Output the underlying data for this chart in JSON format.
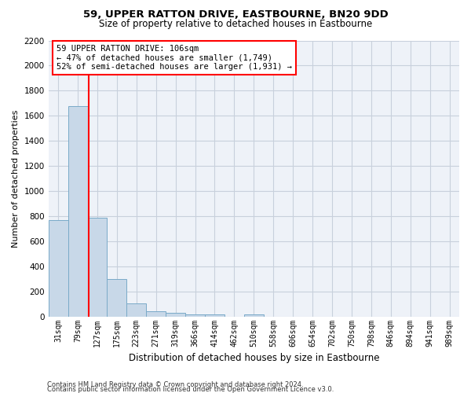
{
  "title": "59, UPPER RATTON DRIVE, EASTBOURNE, BN20 9DD",
  "subtitle": "Size of property relative to detached houses in Eastbourne",
  "xlabel": "Distribution of detached houses by size in Eastbourne",
  "ylabel": "Number of detached properties",
  "footnote1": "Contains HM Land Registry data © Crown copyright and database right 2024.",
  "footnote2": "Contains public sector information licensed under the Open Government Licence v3.0.",
  "bar_categories": [
    "31sqm",
    "79sqm",
    "127sqm",
    "175sqm",
    "223sqm",
    "271sqm",
    "319sqm",
    "366sqm",
    "414sqm",
    "462sqm",
    "510sqm",
    "558sqm",
    "606sqm",
    "654sqm",
    "702sqm",
    "750sqm",
    "798sqm",
    "846sqm",
    "894sqm",
    "941sqm",
    "989sqm"
  ],
  "bar_heights": [
    770,
    1680,
    790,
    300,
    110,
    45,
    30,
    22,
    20,
    0,
    20,
    0,
    0,
    0,
    0,
    0,
    0,
    0,
    0,
    0,
    0
  ],
  "bar_color": "#c8d8e8",
  "bar_edgecolor": "#7aaac8",
  "grid_color": "#c8d0dc",
  "bg_color": "#eef2f8",
  "annotation_line1": "59 UPPER RATTON DRIVE: 106sqm",
  "annotation_line2": "← 47% of detached houses are smaller (1,749)",
  "annotation_line3": "52% of semi-detached houses are larger (1,931) →",
  "annotation_box_color": "white",
  "annotation_box_edgecolor": "red",
  "vline_x": 1.55,
  "vline_color": "red",
  "ylim": [
    0,
    2200
  ],
  "yticks": [
    0,
    200,
    400,
    600,
    800,
    1000,
    1200,
    1400,
    1600,
    1800,
    2000,
    2200
  ],
  "title_fontsize": 9.5,
  "subtitle_fontsize": 8.5,
  "ylabel_fontsize": 8,
  "xlabel_fontsize": 8.5,
  "tick_fontsize": 7,
  "annot_fontsize": 7.5,
  "footnote_fontsize": 6
}
